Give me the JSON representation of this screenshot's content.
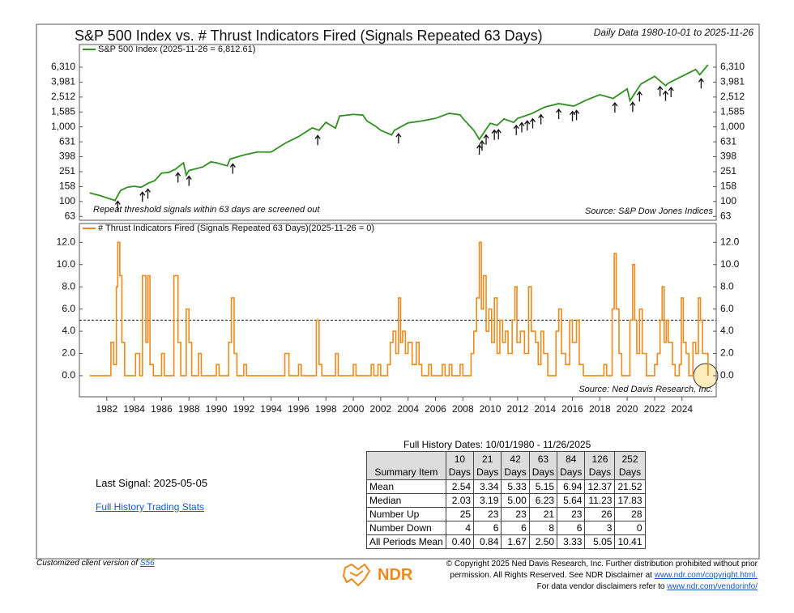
{
  "chart_data": [
    {
      "type": "line",
      "title": "S&P 500 Index vs. # Thrust Indicators Fired (Signals Repeated 63 Days)",
      "date_range": "Daily Data 1980-10-01 to 2025-11-26",
      "log_y": true,
      "xlim": [
        1980,
        2026.5
      ],
      "ylim": [
        56,
        12700
      ],
      "yticks": [
        63,
        100,
        158,
        251,
        398,
        631,
        {
          "value": 1000,
          "label": "1,000"
        },
        {
          "value": 1585,
          "label": "1,585"
        },
        {
          "value": 2512,
          "label": "2,512"
        },
        {
          "value": 3981,
          "label": "3,981"
        },
        {
          "value": 6310,
          "label": "6,310"
        }
      ],
      "x": [
        1980.75,
        1981.5,
        1982.6,
        1983.0,
        1983.5,
        1984.0,
        1984.5,
        1985.0,
        1985.5,
        1986.0,
        1986.5,
        1987.0,
        1987.6,
        1987.8,
        1988.0,
        1989.0,
        1989.6,
        1990.0,
        1990.8,
        1991.0,
        1992.0,
        1993.0,
        1994.0,
        1995.0,
        1996.0,
        1997.0,
        1997.5,
        1998.0,
        1998.7,
        1999.0,
        2000.0,
        2000.7,
        2001.0,
        2001.7,
        2002.0,
        2002.8,
        2003.0,
        2004.0,
        2005.0,
        2006.0,
        2007.0,
        2007.8,
        2008.0,
        2008.8,
        2009.2,
        2010.0,
        2010.5,
        2011.0,
        2011.7,
        2012.0,
        2013.0,
        2014.0,
        2015.0,
        2016.1,
        2017.0,
        2018.0,
        2018.98,
        2019.1,
        2020.0,
        2020.2,
        2021.0,
        2022.0,
        2022.8,
        2023.0,
        2024.0,
        2025.0,
        2025.3,
        2025.9
      ],
      "series": [
        {
          "name": "S&P 500 Index (2025-11-26 = 6,812.61)",
          "color": "#2f8f1f",
          "values": [
            130,
            120,
            103,
            140,
            155,
            160,
            155,
            175,
            190,
            240,
            245,
            270,
            330,
            225,
            260,
            290,
            340,
            330,
            300,
            370,
            420,
            460,
            460,
            600,
            740,
            970,
            900,
            1150,
            960,
            1400,
            1470,
            1440,
            1200,
            1000,
            900,
            780,
            900,
            1130,
            1200,
            1300,
            1520,
            1450,
            1300,
            900,
            680,
            1120,
            1050,
            1280,
            1150,
            1300,
            1500,
            1850,
            2050,
            1900,
            2280,
            2700,
            2400,
            2500,
            3230,
            2240,
            3750,
            4770,
            3580,
            3850,
            4770,
            5880,
            5000,
            6812.61
          ]
        }
      ],
      "signals": [
        1982.8,
        1984.6,
        1985.0,
        1987.2,
        1988.0,
        1991.2,
        1997.4,
        2003.3,
        2009.2,
        2009.4,
        2009.7,
        2010.3,
        2010.6,
        2011.9,
        2012.3,
        2012.7,
        2013.1,
        2013.7,
        2015.0,
        2016.0,
        2016.3,
        2019.1,
        2020.4,
        2020.9,
        2022.4,
        2022.8,
        2023.2,
        2025.4
      ],
      "note": "Repeat threshold signals within 63 days are screened out",
      "source": "Source:  S&P Dow Jones Indices"
    },
    {
      "type": "line",
      "step": true,
      "xlim": [
        1980,
        2026.5
      ],
      "ylim": [
        -1.9,
        13.7
      ],
      "yticks": [
        {
          "value": 0,
          "label": "0.0"
        },
        {
          "value": 2,
          "label": "2.0"
        },
        {
          "value": 4,
          "label": "4.0"
        },
        {
          "value": 6,
          "label": "6.0"
        },
        {
          "value": 8,
          "label": "8.0"
        },
        {
          "value": 10,
          "label": "10.0"
        },
        {
          "value": 12,
          "label": "12.0"
        }
      ],
      "xticks": [
        1982,
        1984,
        1986,
        1988,
        1990,
        1992,
        1994,
        1996,
        1998,
        2000,
        2002,
        2004,
        2006,
        2008,
        2010,
        2012,
        2014,
        2016,
        2018,
        2020,
        2022,
        2024
      ],
      "threshold": 5,
      "x": [
        1980.75,
        1982.3,
        1982.5,
        1982.7,
        1982.8,
        1982.95,
        1983.1,
        1983.3,
        1984.1,
        1984.4,
        1984.6,
        1984.85,
        1985.0,
        1985.15,
        1985.4,
        1986.0,
        1986.2,
        1986.9,
        1987.2,
        1987.4,
        1987.8,
        1988.0,
        1988.2,
        1988.7,
        1988.9,
        1990.0,
        1990.2,
        1990.9,
        1991.1,
        1991.3,
        1991.5,
        1992.0,
        1992.2,
        1995.0,
        1995.3,
        1996.0,
        1996.2,
        1997.3,
        1997.5,
        1997.7,
        1998.7,
        1998.9,
        2000.0,
        2000.2,
        2001.3,
        2001.5,
        2001.8,
        2002.0,
        2002.5,
        2002.7,
        2002.9,
        2003.1,
        2003.3,
        2003.45,
        2003.6,
        2003.8,
        2004.0,
        2004.3,
        2004.6,
        2004.8,
        2005.0,
        2005.5,
        2005.7,
        2006.5,
        2006.7,
        2007.0,
        2007.2,
        2007.8,
        2008.0,
        2008.6,
        2008.8,
        2009.0,
        2009.2,
        2009.35,
        2009.5,
        2009.7,
        2009.9,
        2010.1,
        2010.3,
        2010.5,
        2010.7,
        2010.9,
        2011.1,
        2011.3,
        2011.6,
        2011.8,
        2011.95,
        2012.2,
        2012.5,
        2012.8,
        2013.0,
        2013.3,
        2013.5,
        2013.7,
        2013.9,
        2014.2,
        2014.8,
        2015.0,
        2015.2,
        2015.5,
        2015.8,
        2016.0,
        2016.3,
        2016.5,
        2016.8,
        2018.3,
        2018.5,
        2018.9,
        2019.05,
        2019.2,
        2019.4,
        2019.6,
        2020.2,
        2020.4,
        2020.55,
        2020.7,
        2020.9,
        2021.1,
        2021.4,
        2022.0,
        2022.2,
        2022.4,
        2022.55,
        2022.7,
        2022.85,
        2023.0,
        2023.3,
        2023.5,
        2023.8,
        2023.95,
        2024.1,
        2024.3,
        2024.5,
        2024.8,
        2025.0,
        2025.2,
        2025.35,
        2025.5,
        2025.9
      ],
      "series": [
        {
          "name": "# Thrust Indicators Fired (Signals Repeated 63 Days)(2025-11-26 = 0)",
          "color": "#f0891a",
          "values": [
            0,
            3,
            1,
            8,
            12,
            9,
            3,
            0,
            2,
            0,
            9,
            3,
            9,
            1,
            0,
            2,
            0,
            9,
            3,
            0,
            6,
            3,
            0,
            2,
            0,
            1,
            0,
            3,
            7,
            2,
            0,
            1,
            0,
            2,
            0,
            1,
            0,
            5,
            1,
            0,
            2,
            0,
            1,
            0,
            1,
            0,
            1,
            0,
            1,
            3,
            4,
            2,
            7,
            3,
            4,
            2,
            3,
            1,
            3,
            1,
            0,
            1,
            0,
            1,
            0,
            1,
            0,
            1,
            0,
            2,
            4,
            7,
            12,
            6,
            9,
            4,
            6,
            3,
            7,
            2,
            5,
            3,
            4,
            2,
            5,
            8,
            3,
            4,
            2,
            8,
            4,
            3,
            1,
            4,
            2,
            0,
            4,
            6,
            2,
            1,
            5,
            3,
            5,
            1,
            0,
            1,
            0,
            6,
            11,
            6,
            2,
            0,
            5,
            10,
            5,
            2,
            6,
            2,
            0,
            1,
            2,
            5,
            8,
            3,
            5,
            3,
            1,
            0,
            1,
            7,
            3,
            2,
            0,
            3,
            2,
            7,
            5,
            2,
            0
          ]
        }
      ],
      "source": "Source:  Ned Davis Research, Inc."
    }
  ],
  "table": {
    "caption": "Full History Dates: 10/01/1980 - 11/26/2025",
    "first_header": "Summary Item",
    "columns": [
      "10",
      "21",
      "42",
      "63",
      "84",
      "126",
      "252"
    ],
    "column_unit": "Days",
    "rows": [
      [
        "Mean",
        "2.54",
        "3.34",
        "5.33",
        "5.15",
        "6.94",
        "12.37",
        "21.52"
      ],
      [
        "Median",
        "2.03",
        "3.19",
        "5.00",
        "6.23",
        "5.64",
        "11.23",
        "17.83"
      ],
      [
        "Number Up",
        "25",
        "23",
        "23",
        "21",
        "23",
        "26",
        "28"
      ],
      [
        "Number Down",
        "4",
        "6",
        "6",
        "8",
        "6",
        "3",
        "0"
      ],
      [
        "All Periods Mean",
        "0.40",
        "0.84",
        "1.67",
        "2.50",
        "3.33",
        "5.05",
        "10.41"
      ]
    ]
  },
  "last_signal": "Last Signal: 2025-05-05",
  "stats_link": "Full History Trading Stats",
  "footer": {
    "client_note": "Customized client version of",
    "client_link": "S56",
    "logo": "NDR",
    "copyright": [
      "© Copyright 2025 Ned Davis Research, Inc. Further distribution prohibited without prior",
      "permission. All Rights Reserved. See NDR Disclaimer at",
      "For data vendor disclaimers refer to"
    ],
    "links": [
      "www.ndr.com/copyright.html.",
      "www.ndr.com/vendorinfo/"
    ]
  }
}
